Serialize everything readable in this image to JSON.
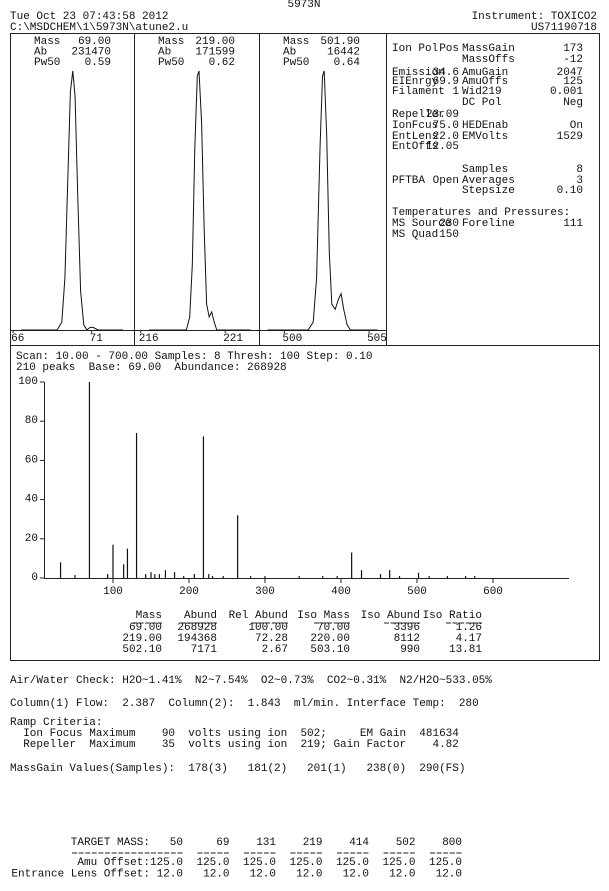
{
  "header": {
    "model": "5973N",
    "datetime": "Tue Oct 23 07:43:58 2012",
    "instrument": "Instrument: TOXICO2",
    "path": "C:\\MSDCHEM\\1\\5973N\\atune2.u",
    "serial": "US71190718"
  },
  "chart_data": [
    {
      "type": "line",
      "labels": [
        {
          "name": "Mass",
          "value": "69.00"
        },
        {
          "name": "Ab",
          "value": "231470"
        },
        {
          "name": "Pw50",
          "value": "0.59"
        }
      ],
      "x": [
        66.5,
        68.8,
        69.1,
        69.3,
        69.5,
        69.65,
        69.8,
        69.95,
        70.1,
        70.3,
        70.5,
        70.7,
        70.9,
        71.1,
        71.4,
        73
      ],
      "values": [
        0,
        0,
        3,
        20,
        62,
        92,
        100,
        90,
        55,
        15,
        2,
        0,
        1,
        1,
        0,
        0
      ],
      "xlim": [
        65.8,
        73.7
      ],
      "xticks": [
        66,
        71
      ],
      "ylim": [
        0,
        110
      ]
    },
    {
      "type": "line",
      "labels": [
        {
          "name": "Mass",
          "value": "219.00"
        },
        {
          "name": "Ab",
          "value": "171599"
        },
        {
          "name": "Pw50",
          "value": "0.62"
        }
      ],
      "x": [
        216.5,
        218.7,
        218.9,
        219.05,
        219.2,
        219.35,
        219.45,
        219.6,
        219.75,
        219.9,
        220.05,
        220.2,
        220.35,
        220.5,
        222.5
      ],
      "values": [
        0,
        0,
        5,
        25,
        70,
        98,
        100,
        80,
        40,
        10,
        5,
        7,
        3,
        0,
        0
      ],
      "xlim": [
        215.6,
        223
      ],
      "xticks": [
        216,
        221
      ],
      "ylim": [
        0,
        110
      ]
    },
    {
      "type": "line",
      "labels": [
        {
          "name": "Mass",
          "value": "501.90"
        },
        {
          "name": "Ab",
          "value": "16442"
        },
        {
          "name": "Pw50",
          "value": "0.64"
        }
      ],
      "x": [
        499,
        501.4,
        501.7,
        501.9,
        502.1,
        502.25,
        502.35,
        502.5,
        502.65,
        502.8,
        503.0,
        503.2,
        503.35,
        503.5,
        503.7,
        503.9,
        505.5
      ],
      "values": [
        0,
        0,
        3,
        20,
        70,
        98,
        100,
        75,
        30,
        10,
        8,
        12,
        14,
        8,
        2,
        0,
        0
      ],
      "xlim": [
        498.5,
        506
      ],
      "xticks": [
        500,
        505
      ],
      "ylim": [
        0,
        110
      ]
    },
    {
      "type": "bar",
      "info": [
        "Scan: 10.00 - 700.00 Samples: 8 Thresh: 100 Step: 0.10",
        "210 peaks  Base: 69.00  Abundance: 268928"
      ],
      "x": [
        31,
        50,
        69,
        93,
        100,
        114,
        119,
        131,
        143,
        150,
        155,
        161,
        169,
        181,
        193,
        207,
        219,
        226,
        231,
        245,
        264,
        281,
        300,
        345,
        376,
        395,
        414,
        427,
        452,
        464,
        477,
        502,
        516,
        540,
        564,
        576
      ],
      "values": [
        8,
        1.5,
        100,
        2,
        17,
        7,
        15,
        74,
        2,
        3,
        2,
        2,
        4,
        3,
        1,
        2,
        72.28,
        2,
        1,
        1,
        32,
        1,
        1,
        1,
        1,
        1,
        13,
        4,
        2,
        4,
        1,
        2.67,
        1,
        1,
        1,
        1
      ],
      "xlim": [
        10,
        700
      ],
      "xticks": [
        100,
        200,
        300,
        400,
        500,
        600
      ],
      "ylim": [
        0,
        100
      ],
      "yticks": [
        0,
        20,
        40,
        60,
        80,
        100
      ]
    }
  ],
  "tune_params": {
    "left": [
      [
        "Ion Pol",
        "Pos"
      ],
      [
        "Emission",
        "34.6"
      ],
      [
        "EIEnrgy",
        "69.9"
      ],
      [
        "Filament",
        "1"
      ],
      [
        "Repeller",
        "23.09"
      ],
      [
        "IonFcus",
        "75.0"
      ],
      [
        "EntLens",
        "22.0"
      ],
      [
        "EntOffs",
        "12.05"
      ],
      [
        "PFTBA",
        "Open"
      ]
    ],
    "right": [
      [
        "MassGain",
        "173"
      ],
      [
        "MassOffs",
        "-12"
      ],
      [
        "AmuGain",
        "2047"
      ],
      [
        "AmuOffs",
        "125"
      ],
      [
        "Wid219",
        "0.001"
      ],
      [
        "DC Pol",
        "Neg"
      ],
      [
        "HEDEnab",
        "On"
      ],
      [
        "EMVolts",
        "1529"
      ],
      [
        "Samples",
        "8"
      ],
      [
        "Averages",
        "3"
      ],
      [
        "Stepsize",
        "0.10"
      ]
    ],
    "temps_title": "Temperatures and Pressures:",
    "temps": [
      [
        "MS Source",
        "230"
      ],
      [
        "Foreline",
        "111"
      ],
      [
        "MS Quad",
        "150"
      ]
    ]
  },
  "peak_table": {
    "headers": [
      "Mass",
      "Abund",
      "Rel Abund",
      "Iso Mass",
      "Iso Abund",
      "Iso Ratio"
    ],
    "rows": [
      [
        "69.00",
        "268928",
        "100.00",
        "70.00",
        "3396",
        "1.26"
      ],
      [
        "219.00",
        "194368",
        "72.28",
        "220.00",
        "8112",
        "4.17"
      ],
      [
        "502.10",
        "7171",
        "2.67",
        "503.10",
        "990",
        "13.81"
      ]
    ]
  },
  "report_lines": [
    "Air/Water Check: H2O~1.41%  N2~7.54%  O2~0.73%  CO2~0.31%  N2/H2O~533.05%",
    "Column(1) Flow:  2.387  Column(2):  1.843  ml/min. Interface Temp:  280",
    "Ramp Criteria:",
    "  Ion Focus Maximum    90  volts using ion  502;     EM Gain  481634",
    "  Repeller  Maximum    35  volts using ion  219; Gain Factor    4.82",
    "MassGain Values(Samples):  178(3)   181(2)   201(1)   238(0)  290(FS)"
  ],
  "target_table": {
    "header": "TARGET MASS:",
    "masses": [
      "50",
      "69",
      "131",
      "219",
      "414",
      "502",
      "800"
    ],
    "rows": [
      {
        "label": "Amu Offset:",
        "values": [
          "125.0",
          "125.0",
          "125.0",
          "125.0",
          "125.0",
          "125.0",
          "125.0"
        ]
      },
      {
        "label": "Entrance Lens Offset:",
        "values": [
          "12.0",
          "12.0",
          "12.0",
          "12.0",
          "12.0",
          "12.0",
          "12.0"
        ]
      }
    ]
  }
}
